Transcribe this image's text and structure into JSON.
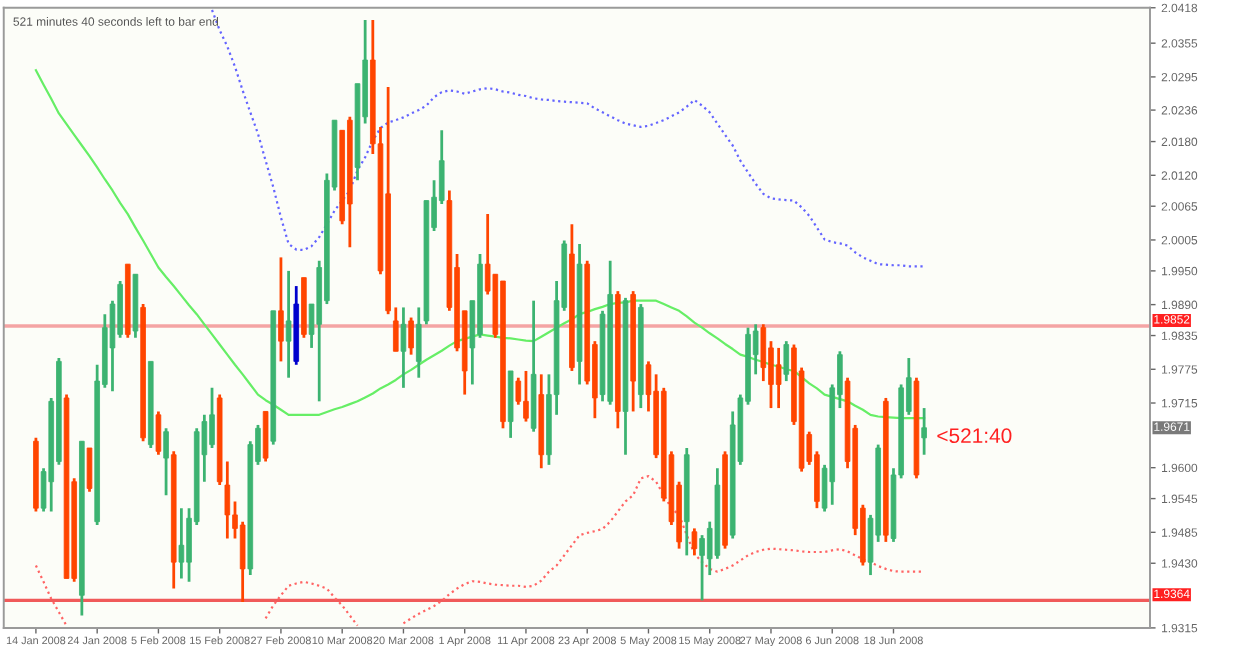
{
  "chart_data": {
    "type": "candlestick",
    "categories": [
      "14 Jan 2008",
      null,
      null,
      null,
      null,
      null,
      null,
      null,
      "24 Jan 2008",
      null,
      null,
      null,
      null,
      null,
      null,
      null,
      "5 Feb 2008",
      null,
      null,
      null,
      null,
      null,
      null,
      null,
      "15 Feb 2008",
      null,
      null,
      null,
      null,
      null,
      null,
      null,
      "27 Feb 2008",
      null,
      null,
      null,
      null,
      null,
      null,
      null,
      "10 Mar 2008",
      null,
      null,
      null,
      null,
      null,
      null,
      null,
      "20 Mar 2008",
      null,
      null,
      null,
      null,
      null,
      null,
      null,
      "1 Apr 2008",
      null,
      null,
      null,
      null,
      null,
      null,
      null,
      "11 Apr 2008",
      null,
      null,
      null,
      null,
      null,
      null,
      null,
      "23 Apr 2008",
      null,
      null,
      null,
      null,
      null,
      null,
      null,
      "5 May 2008",
      null,
      null,
      null,
      null,
      null,
      null,
      null,
      "15 May 2008",
      null,
      null,
      null,
      null,
      null,
      null,
      null,
      "27 May 2008",
      null,
      null,
      null,
      null,
      null,
      null,
      null,
      "6 Jun 2008",
      null,
      null,
      null,
      null,
      null,
      null,
      null,
      "18 Jun 2008",
      null,
      null,
      null,
      null
    ],
    "ohlc": [
      [
        1.9647,
        1.9653,
        1.9522,
        1.9528
      ],
      [
        1.9528,
        1.9599,
        1.9522,
        1.9593
      ],
      [
        1.9575,
        1.9724,
        1.9522,
        1.9718
      ],
      [
        1.9611,
        1.9795,
        1.9605,
        1.9789
      ],
      [
        1.9724,
        1.973,
        1.9403,
        1.9403
      ],
      [
        1.9575,
        1.9581,
        1.9397,
        1.9403
      ],
      [
        1.9373,
        1.9647,
        1.9337,
        1.9647
      ],
      [
        1.9635,
        1.9635,
        1.9557,
        1.9563
      ],
      [
        1.9504,
        1.9783,
        1.9498,
        1.9754
      ],
      [
        1.9748,
        1.9873,
        1.9742,
        1.9849
      ],
      [
        1.9813,
        1.9897,
        1.9736,
        1.9891
      ],
      [
        1.9837,
        1.9932,
        1.9831,
        1.9926
      ],
      [
        1.9962,
        1.9962,
        1.9831,
        1.9837
      ],
      [
        1.9843,
        1.9944,
        1.9831,
        1.9944
      ],
      [
        1.9885,
        1.9891,
        1.9647,
        1.9653
      ],
      [
        1.9641,
        1.9789,
        1.9635,
        1.9789
      ],
      [
        1.9694,
        1.97,
        1.9623,
        1.9629
      ],
      [
        1.9617,
        1.967,
        1.9551,
        1.9664
      ],
      [
        1.9623,
        1.9629,
        1.9385,
        1.9432
      ],
      [
        1.9432,
        1.9528,
        1.9403,
        1.9462
      ],
      [
        1.9432,
        1.9528,
        1.9397,
        1.951
      ],
      [
        1.9504,
        1.967,
        1.9498,
        1.9664
      ],
      [
        1.9623,
        1.9694,
        1.9575,
        1.9682
      ],
      [
        1.9641,
        1.9742,
        1.9635,
        1.9694
      ],
      [
        1.9724,
        1.973,
        1.9569,
        1.9575
      ],
      [
        1.9569,
        1.9611,
        1.9474,
        1.9516
      ],
      [
        1.9516,
        1.954,
        1.9474,
        1.9492
      ],
      [
        1.9498,
        1.9504,
        1.9361,
        1.942
      ],
      [
        1.942,
        1.9647,
        1.9409,
        1.9641
      ],
      [
        1.9611,
        1.9676,
        1.9605,
        1.967
      ],
      [
        1.97,
        1.97,
        1.9611,
        1.9617
      ],
      [
        1.9647,
        1.9879,
        1.9641,
        1.9879
      ],
      [
        1.9879,
        1.9974,
        1.9789,
        1.9825
      ],
      [
        1.9825,
        1.995,
        1.976,
        1.9861
      ],
      [
        1.9789,
        1.9923,
        1.9783,
        1.9891
      ],
      [
        1.9938,
        1.9938,
        1.9831,
        1.9837
      ],
      [
        1.9837,
        1.9891,
        1.9813,
        1.9891
      ],
      [
        1.9855,
        1.9968,
        1.9718,
        1.9956
      ],
      [
        1.9897,
        2.0123,
        1.9891,
        2.0111
      ],
      [
        2.0099,
        2.0218,
        2.0093,
        2.0218
      ],
      [
        2.02,
        2.02,
        2.0033,
        2.0039
      ],
      [
        2.0218,
        2.0224,
        1.9992,
        2.0069
      ],
      [
        2.0134,
        2.0283,
        2.0111,
        2.0283
      ],
      [
        2.0224,
        2.0396,
        2.0212,
        2.0325
      ],
      [
        2.0325,
        2.0396,
        2.0158,
        2.0176
      ],
      [
        2.0176,
        2.0206,
        1.9944,
        1.995
      ],
      [
        2.0087,
        2.0277,
        1.9873,
        1.9879
      ],
      [
        1.9861,
        1.9885,
        1.9807,
        1.9807
      ],
      [
        1.9807,
        1.9885,
        1.9742,
        1.9855
      ],
      [
        1.9861,
        1.9867,
        1.9801,
        1.9813
      ],
      [
        1.9789,
        1.9885,
        1.976,
        1.9855
      ],
      [
        1.9861,
        2.0075,
        1.9855,
        2.0075
      ],
      [
        2.0027,
        2.0111,
        2.0021,
        2.0081
      ],
      [
        2.0075,
        2.02,
        2.0069,
        2.0146
      ],
      [
        2.0075,
        2.0093,
        1.9879,
        1.9885
      ],
      [
        1.9956,
        1.998,
        1.9807,
        1.9813
      ],
      [
        1.9879,
        1.9879,
        1.973,
        1.9772
      ],
      [
        1.9813,
        1.9897,
        1.9748,
        1.9897
      ],
      [
        1.9837,
        1.998,
        1.9831,
        1.9962
      ],
      [
        1.9962,
        2.0051,
        1.9908,
        1.9914
      ],
      [
        1.9944,
        1.9944,
        1.9831,
        1.9837
      ],
      [
        1.9932,
        1.9932,
        1.967,
        1.9682
      ],
      [
        1.9682,
        1.9772,
        1.9653,
        1.9772
      ],
      [
        1.9754,
        1.976,
        1.9712,
        1.9718
      ],
      [
        1.9718,
        1.9772,
        1.9682,
        1.9688
      ],
      [
        1.967,
        1.9897,
        1.9664,
        1.9766
      ],
      [
        1.973,
        1.9766,
        1.9599,
        1.9623
      ],
      [
        1.9623,
        1.9766,
        1.9605,
        1.973
      ],
      [
        1.973,
        1.9932,
        1.9694,
        1.9897
      ],
      [
        1.9885,
        2.0004,
        1.9879,
        1.9998
      ],
      [
        1.998,
        2.0033,
        1.9772,
        1.9778
      ],
      [
        1.9789,
        1.9998,
        1.9748,
        1.9962
      ],
      [
        1.9962,
        1.9968,
        1.9748,
        1.9754
      ],
      [
        1.9819,
        1.9825,
        1.9688,
        1.9724
      ],
      [
        1.973,
        1.9879,
        1.9718,
        1.9873
      ],
      [
        1.9718,
        1.9968,
        1.9712,
        1.9908
      ],
      [
        1.9908,
        1.9914,
        1.967,
        1.97
      ],
      [
        1.97,
        1.9902,
        1.9623,
        1.9897
      ],
      [
        1.9908,
        1.9914,
        1.97,
        1.9754
      ],
      [
        1.973,
        1.9891,
        1.9706,
        1.9885
      ],
      [
        1.9783,
        1.9789,
        1.97,
        1.973
      ],
      [
        1.9736,
        1.9766,
        1.9617,
        1.9623
      ],
      [
        1.9736,
        1.9742,
        1.954,
        1.9546
      ],
      [
        1.9623,
        1.9629,
        1.9498,
        1.9504
      ],
      [
        1.9569,
        1.9575,
        1.9456,
        1.9468
      ],
      [
        1.9504,
        1.9635,
        1.9444,
        1.9623
      ],
      [
        1.9486,
        1.9492,
        1.9444,
        1.9456
      ],
      [
        1.9444,
        1.948,
        1.9364,
        1.9474
      ],
      [
        1.9438,
        1.9504,
        1.9409,
        1.9492
      ],
      [
        1.9444,
        1.9599,
        1.9438,
        1.9569
      ],
      [
        1.9623,
        1.9629,
        1.9456,
        1.9462
      ],
      [
        1.948,
        1.97,
        1.9474,
        1.9676
      ],
      [
        1.9611,
        1.973,
        1.9605,
        1.9724
      ],
      [
        1.9718,
        1.9849,
        1.9712,
        1.9837
      ],
      [
        1.9801,
        1.9855,
        1.9766,
        1.9843
      ],
      [
        1.9849,
        1.9855,
        1.9754,
        1.9778
      ],
      [
        1.9813,
        1.9825,
        1.9706,
        1.9748
      ],
      [
        1.9783,
        1.9813,
        1.9706,
        1.9748
      ],
      [
        1.9766,
        1.9825,
        1.9754,
        1.9819
      ],
      [
        1.9813,
        1.9819,
        1.9676,
        1.9682
      ],
      [
        1.9772,
        1.9778,
        1.9593,
        1.9599
      ],
      [
        1.9659,
        1.9664,
        1.9605,
        1.9611
      ],
      [
        1.9623,
        1.9629,
        1.9528,
        1.954
      ],
      [
        1.9528,
        1.9605,
        1.9522,
        1.9599
      ],
      [
        1.9575,
        1.9748,
        1.9534,
        1.9742
      ],
      [
        1.973,
        1.9807,
        1.9706,
        1.9801
      ],
      [
        1.9754,
        1.976,
        1.9599,
        1.9611
      ],
      [
        1.967,
        1.9676,
        1.948,
        1.9492
      ],
      [
        1.9528,
        1.9534,
        1.9426,
        1.9432
      ],
      [
        1.9432,
        1.9516,
        1.9409,
        1.951
      ],
      [
        1.948,
        1.9641,
        1.9468,
        1.9635
      ],
      [
        1.9718,
        1.9724,
        1.9468,
        1.948
      ],
      [
        1.9474,
        1.9599,
        1.9468,
        1.9587
      ],
      [
        1.9587,
        1.9748,
        1.9581,
        1.9742
      ],
      [
        1.97,
        1.9795,
        1.9694,
        1.976
      ],
      [
        1.9754,
        1.976,
        1.9581,
        1.9587
      ],
      [
        1.9653,
        1.9706,
        1.9623,
        1.9671
      ]
    ],
    "colors": [
      "#ff4500",
      "#3cb371",
      "#3cb371",
      "#3cb371",
      "#ff4500",
      "#ff4500",
      "#3cb371",
      "#ff4500",
      "#3cb371",
      "#3cb371",
      "#3cb371",
      "#3cb371",
      "#ff4500",
      "#3cb371",
      "#ff4500",
      "#3cb371",
      "#ff4500",
      "#3cb371",
      "#ff4500",
      "#3cb371",
      "#3cb371",
      "#3cb371",
      "#3cb371",
      "#3cb371",
      "#ff4500",
      "#ff4500",
      "#ff4500",
      "#ff4500",
      "#3cb371",
      "#3cb371",
      "#ff4500",
      "#3cb371",
      "#ff4500",
      "#3cb371",
      "#0000cd",
      "#ff4500",
      "#3cb371",
      "#3cb371",
      "#3cb371",
      "#3cb371",
      "#ff4500",
      "#ff4500",
      "#3cb371",
      "#3cb371",
      "#ff4500",
      "#ff4500",
      "#ff4500",
      "#ff4500",
      "#3cb371",
      "#ff4500",
      "#3cb371",
      "#3cb371",
      "#3cb371",
      "#3cb371",
      "#ff4500",
      "#ff4500",
      "#ff4500",
      "#3cb371",
      "#3cb371",
      "#ff4500",
      "#ff4500",
      "#ff4500",
      "#3cb371",
      "#ff4500",
      "#ff4500",
      "#3cb371",
      "#ff4500",
      "#3cb371",
      "#3cb371",
      "#3cb371",
      "#ff4500",
      "#3cb371",
      "#ff4500",
      "#ff4500",
      "#3cb371",
      "#3cb371",
      "#ff4500",
      "#3cb371",
      "#ff4500",
      "#3cb371",
      "#ff4500",
      "#ff4500",
      "#ff4500",
      "#ff4500",
      "#ff4500",
      "#3cb371",
      "#ff4500",
      "#3cb371",
      "#3cb371",
      "#3cb371",
      "#ff4500",
      "#3cb371",
      "#3cb371",
      "#3cb371",
      "#3cb371",
      "#ff4500",
      "#ff4500",
      "#ff4500",
      "#3cb371",
      "#ff4500",
      "#ff4500",
      "#ff4500",
      "#ff4500",
      "#3cb371",
      "#3cb371",
      "#3cb371",
      "#ff4500",
      "#ff4500",
      "#ff4500",
      "#3cb371",
      "#3cb371",
      "#ff4500",
      "#3cb371",
      "#3cb371",
      "#3cb371",
      "#ff4500",
      "#3cb371"
    ],
    "series": [
      {
        "type": "line",
        "color": "#66ee66",
        "line_style": "solid",
        "values": [
          2.0307,
          2.0281,
          2.0256,
          2.023,
          2.0211,
          2.0192,
          2.0173,
          2.0154,
          2.0134,
          2.0113,
          2.0093,
          2.0071,
          2.0051,
          2.0027,
          2.0004,
          1.998,
          1.9956,
          1.9939,
          1.9923,
          1.9906,
          1.9889,
          1.9873,
          1.9855,
          1.9837,
          1.9819,
          1.9801,
          1.9783,
          1.9766,
          1.9748,
          1.973,
          1.972,
          1.9712,
          1.9703,
          1.9694,
          1.9694,
          1.9694,
          1.9694,
          1.9694,
          1.9699,
          1.9704,
          1.9708,
          1.9713,
          1.9718,
          1.9725,
          1.9732,
          1.9741,
          1.9748,
          1.9756,
          1.9766,
          1.9774,
          1.9783,
          1.9792,
          1.98,
          1.9808,
          1.9817,
          1.9825,
          1.9829,
          1.9833,
          1.9837,
          1.9835,
          1.9833,
          1.9831,
          1.983,
          1.9828,
          1.9826,
          1.9825,
          1.9833,
          1.9841,
          1.9849,
          1.9857,
          1.9864,
          1.9873,
          1.9877,
          1.9882,
          1.9886,
          1.9891,
          1.9893,
          1.9894,
          1.9897,
          1.9897,
          1.9897,
          1.9897,
          1.9891,
          1.9885,
          1.9879,
          1.9869,
          1.9858,
          1.9849,
          1.9839,
          1.983,
          1.982,
          1.9811,
          1.9801,
          1.9797,
          1.9792,
          1.9788,
          1.9783,
          1.978,
          1.9775,
          1.9772,
          1.9761,
          1.975,
          1.9741,
          1.973,
          1.9726,
          1.9722,
          1.9718,
          1.971,
          1.9703,
          1.9694,
          1.9691,
          1.969,
          1.9689,
          1.9688,
          1.9688,
          1.9688,
          1.9688
        ]
      },
      {
        "type": "line",
        "color": "#6464ff",
        "line_style": "dotted",
        "values": [
          null,
          null,
          null,
          null,
          null,
          null,
          null,
          null,
          null,
          null,
          null,
          null,
          null,
          null,
          null,
          null,
          null,
          null,
          null,
          null,
          null,
          null,
          null,
          2.0414,
          2.0378,
          2.0349,
          2.0313,
          2.0271,
          2.0232,
          2.0194,
          2.0146,
          2.0099,
          2.0045,
          1.9998,
          1.9988,
          1.9987,
          1.9994,
          2.001,
          2.0033,
          2.0057,
          2.0075,
          2.0093,
          2.0129,
          2.0152,
          2.0182,
          2.0204,
          2.0214,
          2.0218,
          2.0223,
          2.023,
          2.0236,
          2.0244,
          2.0259,
          2.0268,
          2.0271,
          2.0269,
          2.0265,
          2.0269,
          2.0273,
          2.0275,
          2.0273,
          2.0269,
          2.0267,
          2.0263,
          2.0261,
          2.0257,
          2.0255,
          2.0254,
          2.0252,
          2.0251,
          2.025,
          2.0249,
          2.0248,
          2.0239,
          2.0232,
          2.0225,
          2.0218,
          2.0212,
          2.0209,
          2.0206,
          2.0208,
          2.0213,
          2.0218,
          2.0225,
          2.0232,
          2.0242,
          2.0254,
          2.0244,
          2.0232,
          2.0212,
          2.0192,
          2.0173,
          2.0146,
          2.0125,
          2.0105,
          2.0087,
          2.0079,
          2.0077,
          2.0076,
          2.0075,
          2.0063,
          2.0048,
          2.0027,
          2.0006,
          2.0001,
          1.9999,
          1.9995,
          1.9983,
          1.9974,
          1.9968,
          1.9962,
          1.9961,
          1.996,
          1.996,
          1.9958,
          1.9958,
          1.9958
        ]
      },
      {
        "type": "line",
        "color": "#ff6464",
        "line_style": "dotted",
        "values": [
          1.9426,
          1.9397,
          1.9367,
          1.9343,
          1.9319,
          null,
          null,
          null,
          null,
          null,
          null,
          null,
          null,
          null,
          null,
          null,
          null,
          null,
          null,
          null,
          null,
          null,
          null,
          null,
          null,
          null,
          null,
          null,
          null,
          null,
          1.9332,
          1.9355,
          1.9373,
          1.939,
          1.9394,
          1.9397,
          1.9394,
          1.939,
          1.9385,
          1.9369,
          1.9355,
          1.9337,
          1.9319,
          null,
          null,
          null,
          null,
          null,
          1.9323,
          1.9332,
          1.934,
          1.9347,
          1.9354,
          1.9363,
          1.9375,
          1.9385,
          1.9393,
          1.9398,
          1.9397,
          1.9394,
          1.9392,
          1.9391,
          1.939,
          1.939,
          1.9388,
          1.939,
          1.9399,
          1.9415,
          1.9426,
          1.9444,
          1.9462,
          1.948,
          1.9484,
          1.9487,
          1.9491,
          1.9504,
          1.9522,
          1.954,
          1.9551,
          1.9581,
          1.9585,
          1.9575,
          1.9551,
          1.9528,
          1.9516,
          1.948,
          1.9447,
          1.9432,
          1.942,
          1.9415,
          1.942,
          1.9426,
          1.9435,
          1.9444,
          1.945,
          1.9454,
          1.9456,
          1.9455,
          1.9454,
          1.9453,
          1.9451,
          1.945,
          1.945,
          1.945,
          1.9453,
          1.9455,
          1.9451,
          1.9444,
          1.9437,
          1.9432,
          1.9425,
          1.942,
          1.9416,
          1.9415,
          1.9415,
          1.9415,
          1.9415
        ]
      }
    ],
    "ylim": [
      1.9315,
      2.0418
    ],
    "yticks": [
      2.0418,
      2.0355,
      2.0295,
      2.0236,
      {
        "value": 2.018,
        "label": "2.0180"
      },
      {
        "value": 2.012,
        "label": "2.0120"
      },
      2.0065,
      2.0005,
      {
        "value": 1.995,
        "label": "1.9950"
      },
      {
        "value": 1.989,
        "label": "1.9890"
      },
      1.9835,
      1.9775,
      1.9715,
      {
        "value": 1.96,
        "label": "1.9600"
      },
      1.9545,
      1.9485,
      {
        "value": 1.943,
        "label": "1.9430"
      },
      1.9315
    ],
    "ref_lines": [
      {
        "axis": "y",
        "value": 1.9852,
        "label": "1.9852",
        "color": "#f4a4a4"
      },
      {
        "axis": "y",
        "value": 1.9364,
        "label": "1.9364",
        "color": "#f05a5a"
      }
    ],
    "annotations": [
      "521 minutes 40 seconds left to bar end",
      "<521:40",
      "1.9671"
    ]
  }
}
